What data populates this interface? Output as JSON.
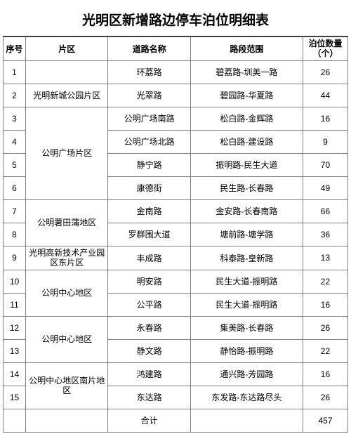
{
  "title": "光明区新增路边停车泊位明细表",
  "headers": {
    "seq": "序号",
    "area": "片区",
    "road": "道路名称",
    "range": "路段范围",
    "count": "泊位数量（个）"
  },
  "rows": [
    {
      "seq": "1",
      "area": "",
      "road": "环荔路",
      "range": "碧荔路-圳美一路",
      "count": "26",
      "area_rowspan": 1
    },
    {
      "seq": "2",
      "area": "光明新城公园片区",
      "road": "光翠路",
      "range": "碧园路-华夏路",
      "count": "44",
      "area_rowspan": 1
    },
    {
      "seq": "3",
      "area": "公明广场片区",
      "road": "公明广场南路",
      "range": "松白路-金辉路",
      "count": "16",
      "area_rowspan": 4
    },
    {
      "seq": "4",
      "road": "公明广场北路",
      "range": "松白路-建设路",
      "count": "9"
    },
    {
      "seq": "5",
      "road": "静宁路",
      "range": "振明路-民生大道",
      "count": "70"
    },
    {
      "seq": "6",
      "road": "康德街",
      "range": "民生路-长春路",
      "count": "49"
    },
    {
      "seq": "7",
      "area": "公明薯田蒲地区",
      "road": "金南路",
      "range": "金安路-长春南路",
      "count": "66",
      "area_rowspan": 2
    },
    {
      "seq": "8",
      "road": "罗群围大道",
      "range": "塘前路-塘学路",
      "count": "36"
    },
    {
      "seq": "9",
      "area": "光明高新技术产业园区东片区",
      "road": "丰成路",
      "range": "科泰路-皇新路",
      "count": "13",
      "area_rowspan": 1
    },
    {
      "seq": "10",
      "area": "公明中心地区",
      "road": "明安路",
      "range": "民生大道-振明路",
      "count": "22",
      "area_rowspan": 2
    },
    {
      "seq": "11",
      "road": "公平路",
      "range": "民生大道-振明路",
      "count": "16"
    },
    {
      "seq": "12",
      "area": "公明中心地区",
      "road": "永春路",
      "range": "集美路-长春路",
      "count": "26",
      "area_rowspan": 2
    },
    {
      "seq": "13",
      "road": "静文路",
      "range": "静怡路-振明路",
      "count": "22"
    },
    {
      "seq": "14",
      "area": "公明中心地区南片地区",
      "road": "鸿建路",
      "range": "通兴路-芳园路",
      "count": "16",
      "area_rowspan": 2
    },
    {
      "seq": "15",
      "road": "东达路",
      "range": "东发路-东达路尽头",
      "count": "26"
    }
  ],
  "total": {
    "label": "合计",
    "value": "457"
  },
  "styles": {
    "border_color": "#808080",
    "text_color": "#000000",
    "background": "#ffffff"
  }
}
